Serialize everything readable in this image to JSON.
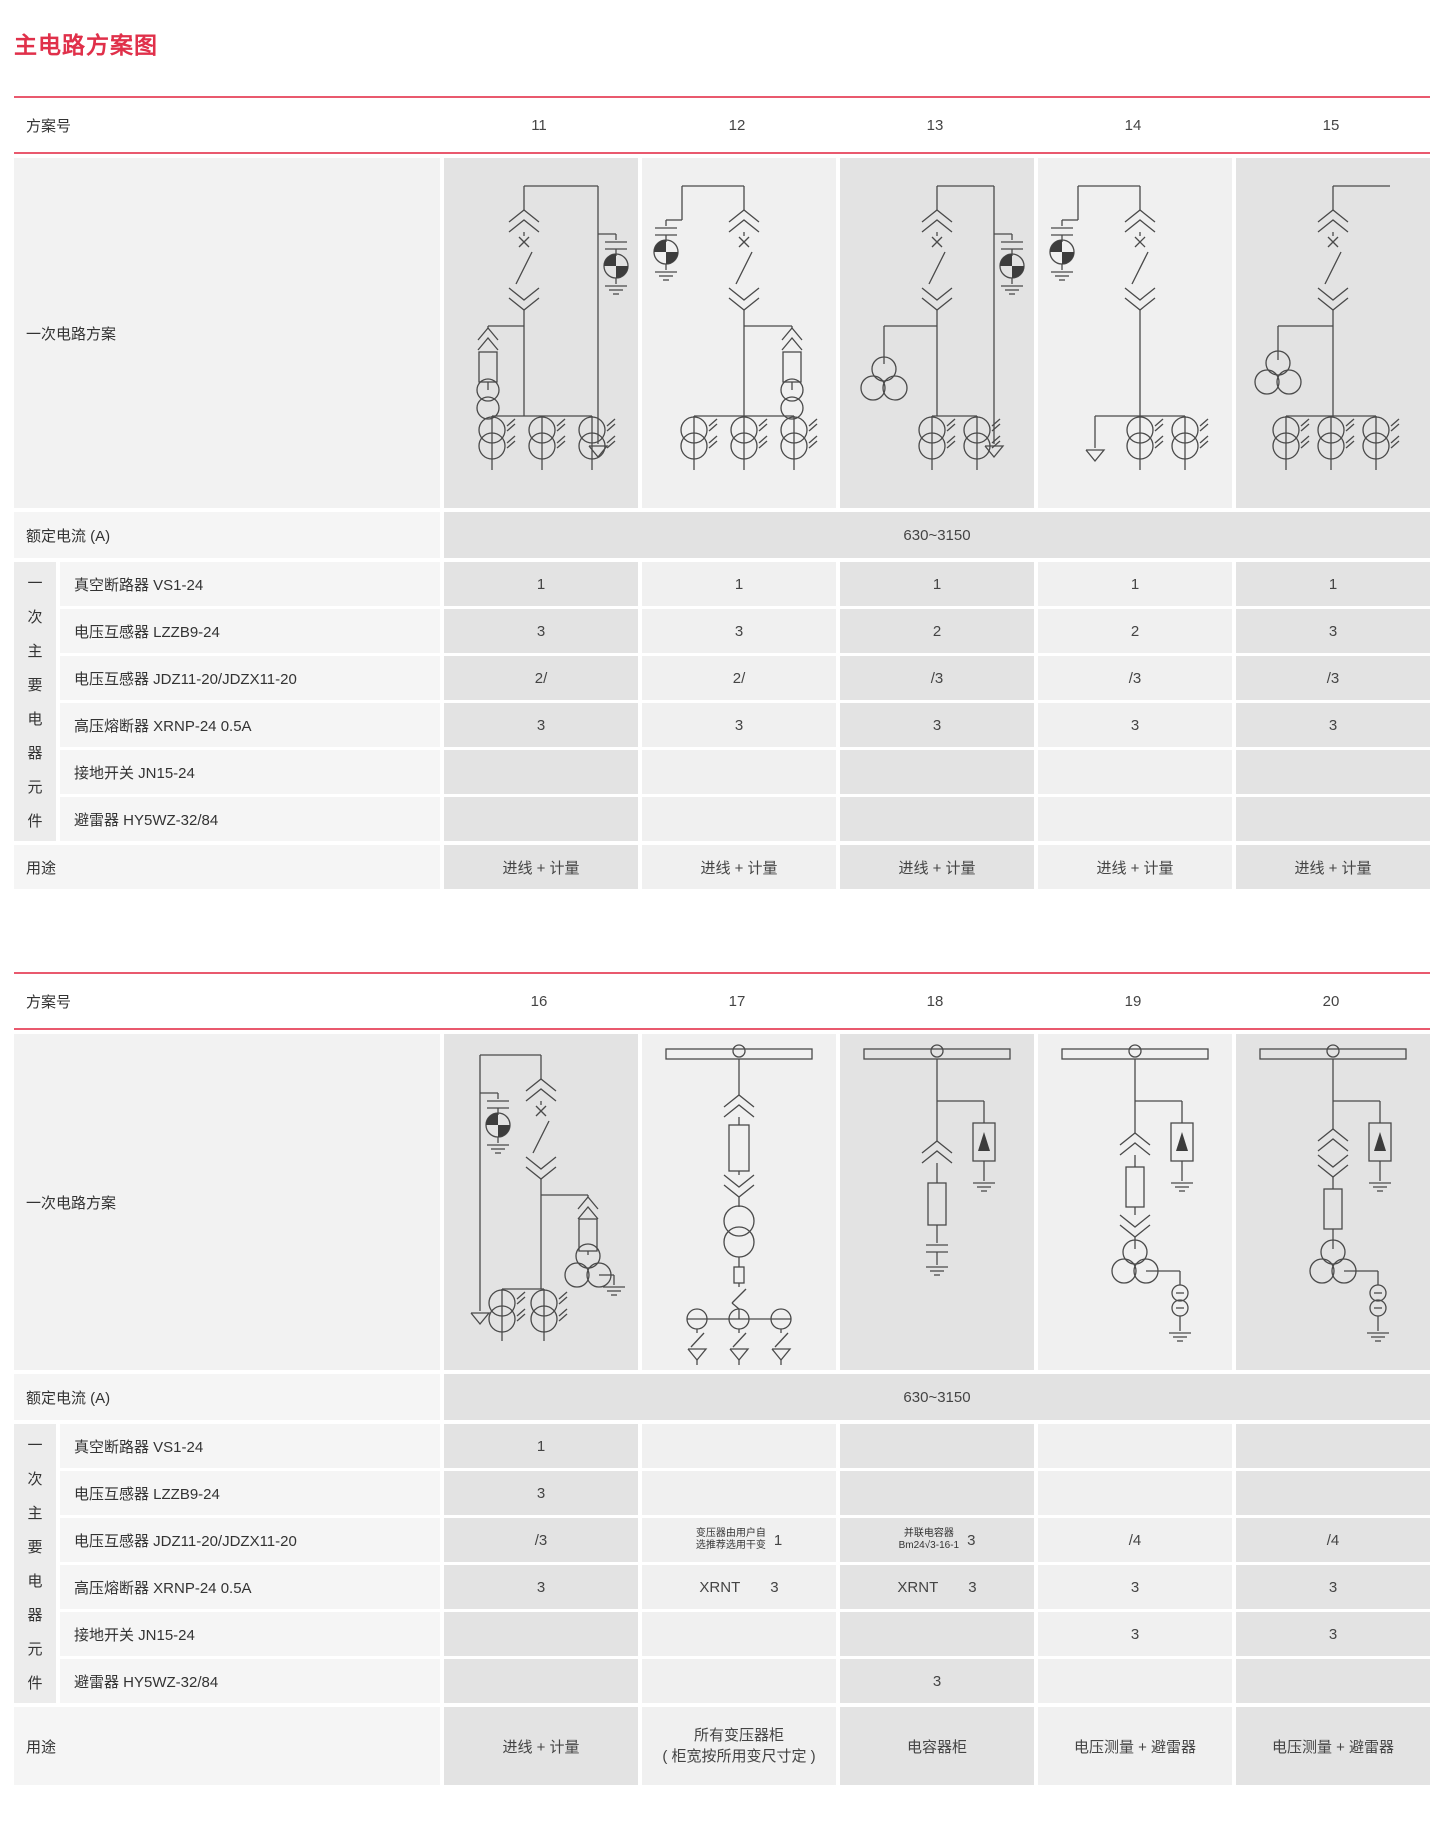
{
  "page": {
    "title": "主电路方案图"
  },
  "colors": {
    "title_red": "#e0304a",
    "rule_red": "#e9596e",
    "cell_dark": "#e3e3e3",
    "cell_light": "#f0f0f0",
    "label_bg": "#f5f5f5",
    "diagram_stroke": "#4a4a4a"
  },
  "labels": {
    "scheme_no": "方案号",
    "primary_circuit": "一次电路方案",
    "rated_current": "额定电流 (A)",
    "vertical": "一次主要电器元件",
    "usage": "用途"
  },
  "component_rows": [
    "真空断路器 VS1-24",
    "电压互感器 LZZB9-24",
    "电压互感器 JDZ11-20/JDZX11-20",
    "高压熔断器 XRNP-24  0.5A",
    "接地开关 JN15-24",
    "避雷器 HY5WZ-32/84"
  ],
  "tables": [
    {
      "scheme_numbers": [
        "11",
        "12",
        "13",
        "14",
        "15"
      ],
      "diagrams": [
        "s11",
        "s12",
        "s13",
        "s14",
        "s15"
      ],
      "rated_current": "630~3150",
      "values": [
        [
          "1",
          "1",
          "1",
          "1",
          "1"
        ],
        [
          "3",
          "3",
          "2",
          "2",
          "3"
        ],
        [
          "2/",
          "2/",
          "/3",
          "/3",
          "/3"
        ],
        [
          "3",
          "3",
          "3",
          "3",
          "3"
        ],
        [
          "",
          "",
          "",
          "",
          ""
        ],
        [
          "",
          "",
          "",
          "",
          ""
        ]
      ],
      "usage": [
        "进线 + 计量",
        "进线 + 计量",
        "进线 + 计量",
        "进线 + 计量",
        "进线 + 计量"
      ]
    },
    {
      "scheme_numbers": [
        "16",
        "17",
        "18",
        "19",
        "20"
      ],
      "diagrams": [
        "s16",
        "s17",
        "s18",
        "s19",
        "s20"
      ],
      "rated_current": "630~3150",
      "values": [
        [
          "1",
          "",
          "",
          "",
          ""
        ],
        [
          "3",
          "",
          "",
          "",
          ""
        ],
        [
          "/3",
          {
            "note": [
              "变压器由用户自",
              "选推荐选用干变"
            ],
            "value": "1"
          },
          {
            "note": [
              "并联电容器",
              "Bm24√3-16-1"
            ],
            "value": "3"
          },
          "/4",
          "/4"
        ],
        [
          "3",
          {
            "prefix": "XRNT",
            "value": "3"
          },
          {
            "prefix": "XRNT",
            "value": "3"
          },
          "3",
          "3"
        ],
        [
          "",
          "",
          "",
          "3",
          "3"
        ],
        [
          "",
          "",
          "3",
          "",
          ""
        ]
      ],
      "usage": [
        "进线 + 计量",
        [
          "所有变压器柜",
          "( 柜宽按所用变尺寸定 )"
        ],
        "电容器柜",
        "电压测量 + 避雷器",
        "电压测量 + 避雷器"
      ]
    }
  ]
}
